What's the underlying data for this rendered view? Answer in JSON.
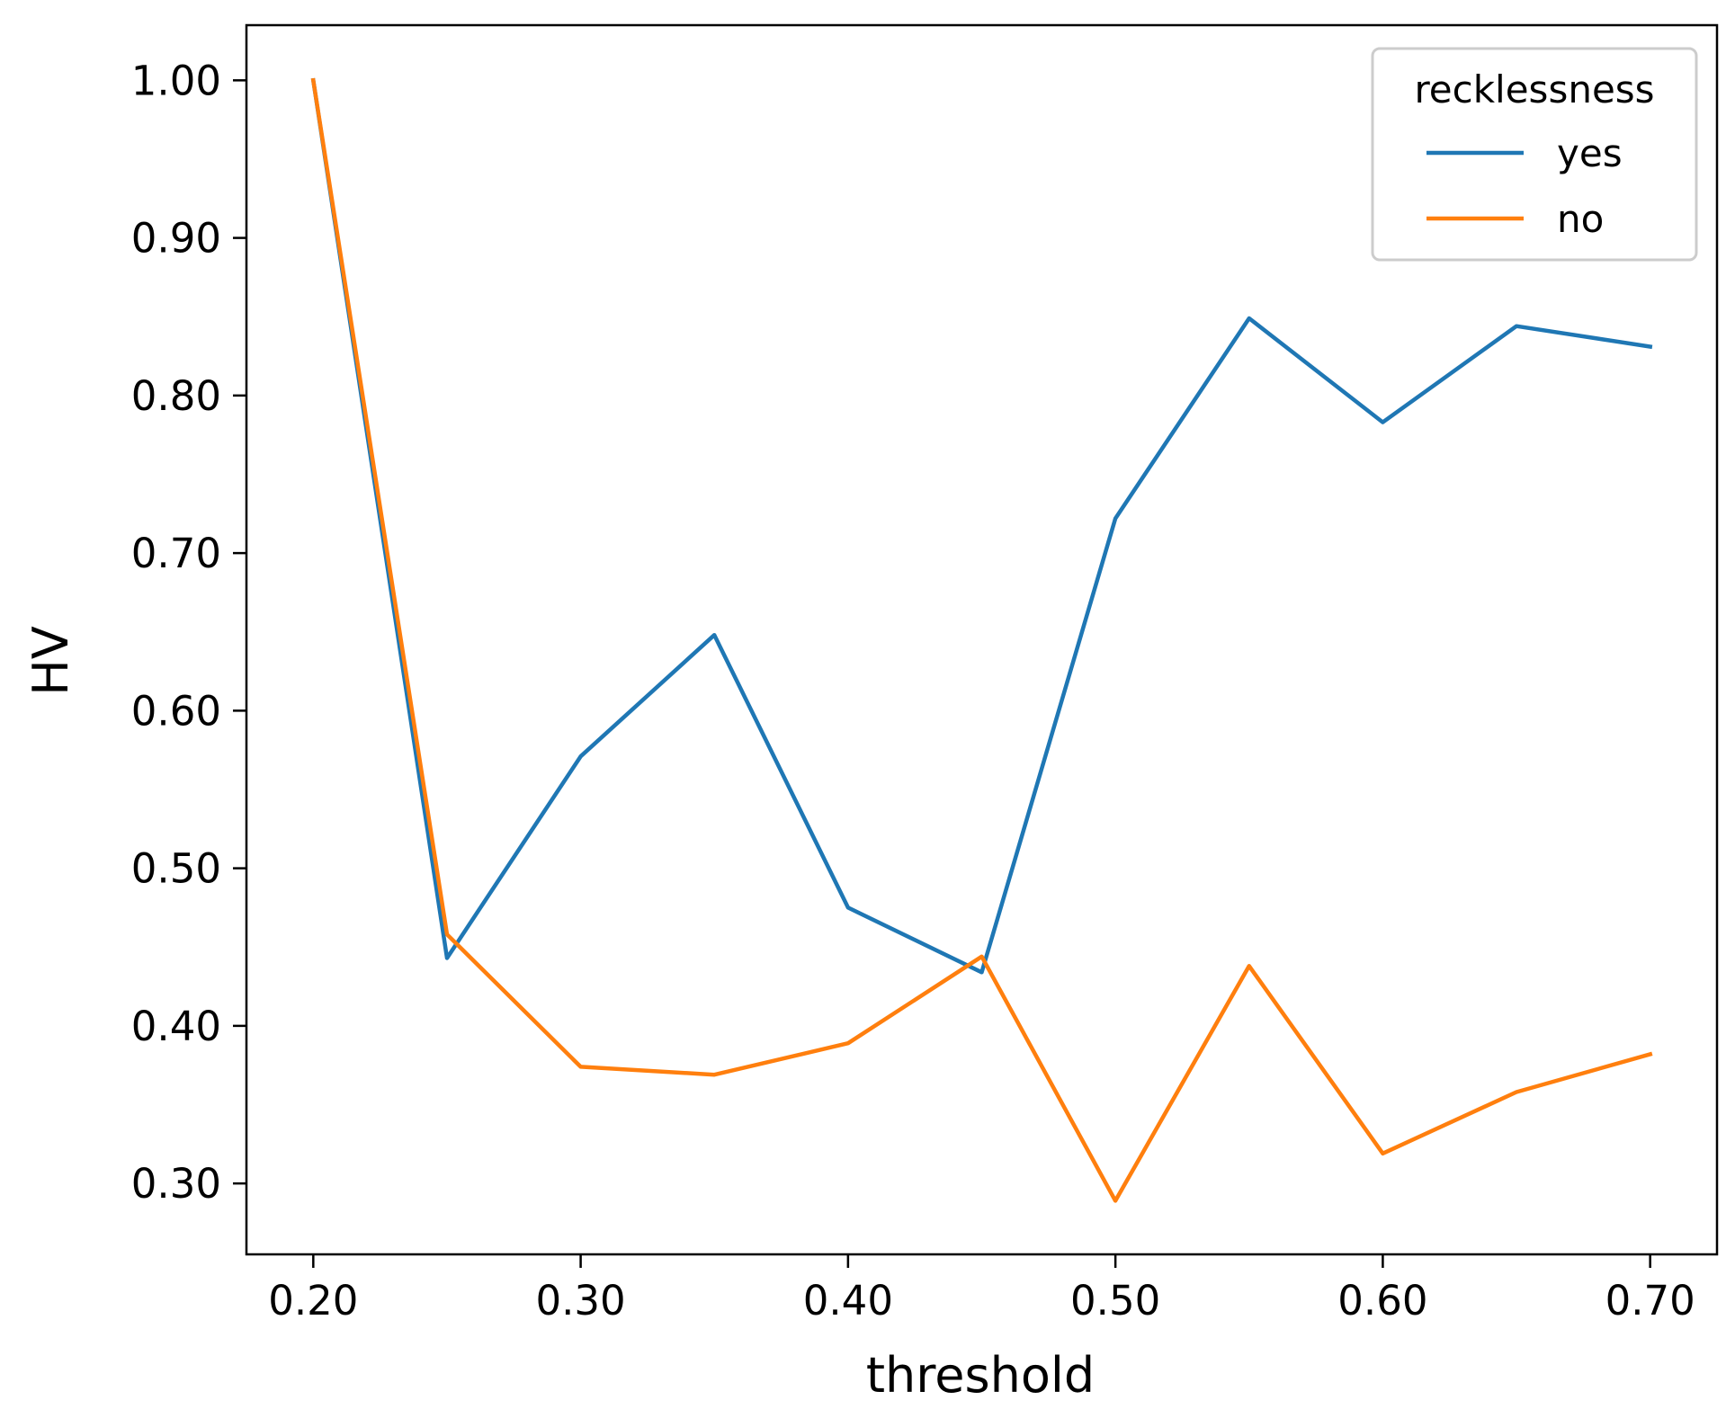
{
  "chart_data": {
    "type": "line",
    "title": "",
    "xlabel": "threshold",
    "ylabel": "HV",
    "x": [
      0.2,
      0.25,
      0.3,
      0.35,
      0.4,
      0.45,
      0.5,
      0.55,
      0.6,
      0.65,
      0.7
    ],
    "xlim": [
      0.175,
      0.725
    ],
    "ylim": [
      0.255,
      1.035
    ],
    "xticks": [
      0.2,
      0.3,
      0.4,
      0.5,
      0.6,
      0.7
    ],
    "xtick_labels": [
      "0.20",
      "0.30",
      "0.40",
      "0.50",
      "0.60",
      "0.70"
    ],
    "yticks": [
      0.3,
      0.4,
      0.5,
      0.6,
      0.7,
      0.8,
      0.9,
      1.0
    ],
    "ytick_labels": [
      "0.30",
      "0.40",
      "0.50",
      "0.60",
      "0.70",
      "0.80",
      "0.90",
      "1.00"
    ],
    "grid": false,
    "legend": {
      "title": "recklessness",
      "placement": "top-right"
    },
    "series": [
      {
        "name": "yes",
        "color": "#1f77b4",
        "values": [
          1.0,
          0.443,
          0.571,
          0.648,
          0.475,
          0.434,
          0.722,
          0.849,
          0.783,
          0.844,
          0.831
        ]
      },
      {
        "name": "no",
        "color": "#ff7f0e",
        "values": [
          1.0,
          0.458,
          0.374,
          0.369,
          0.389,
          0.444,
          0.289,
          0.438,
          0.319,
          0.358,
          0.382
        ]
      }
    ]
  }
}
